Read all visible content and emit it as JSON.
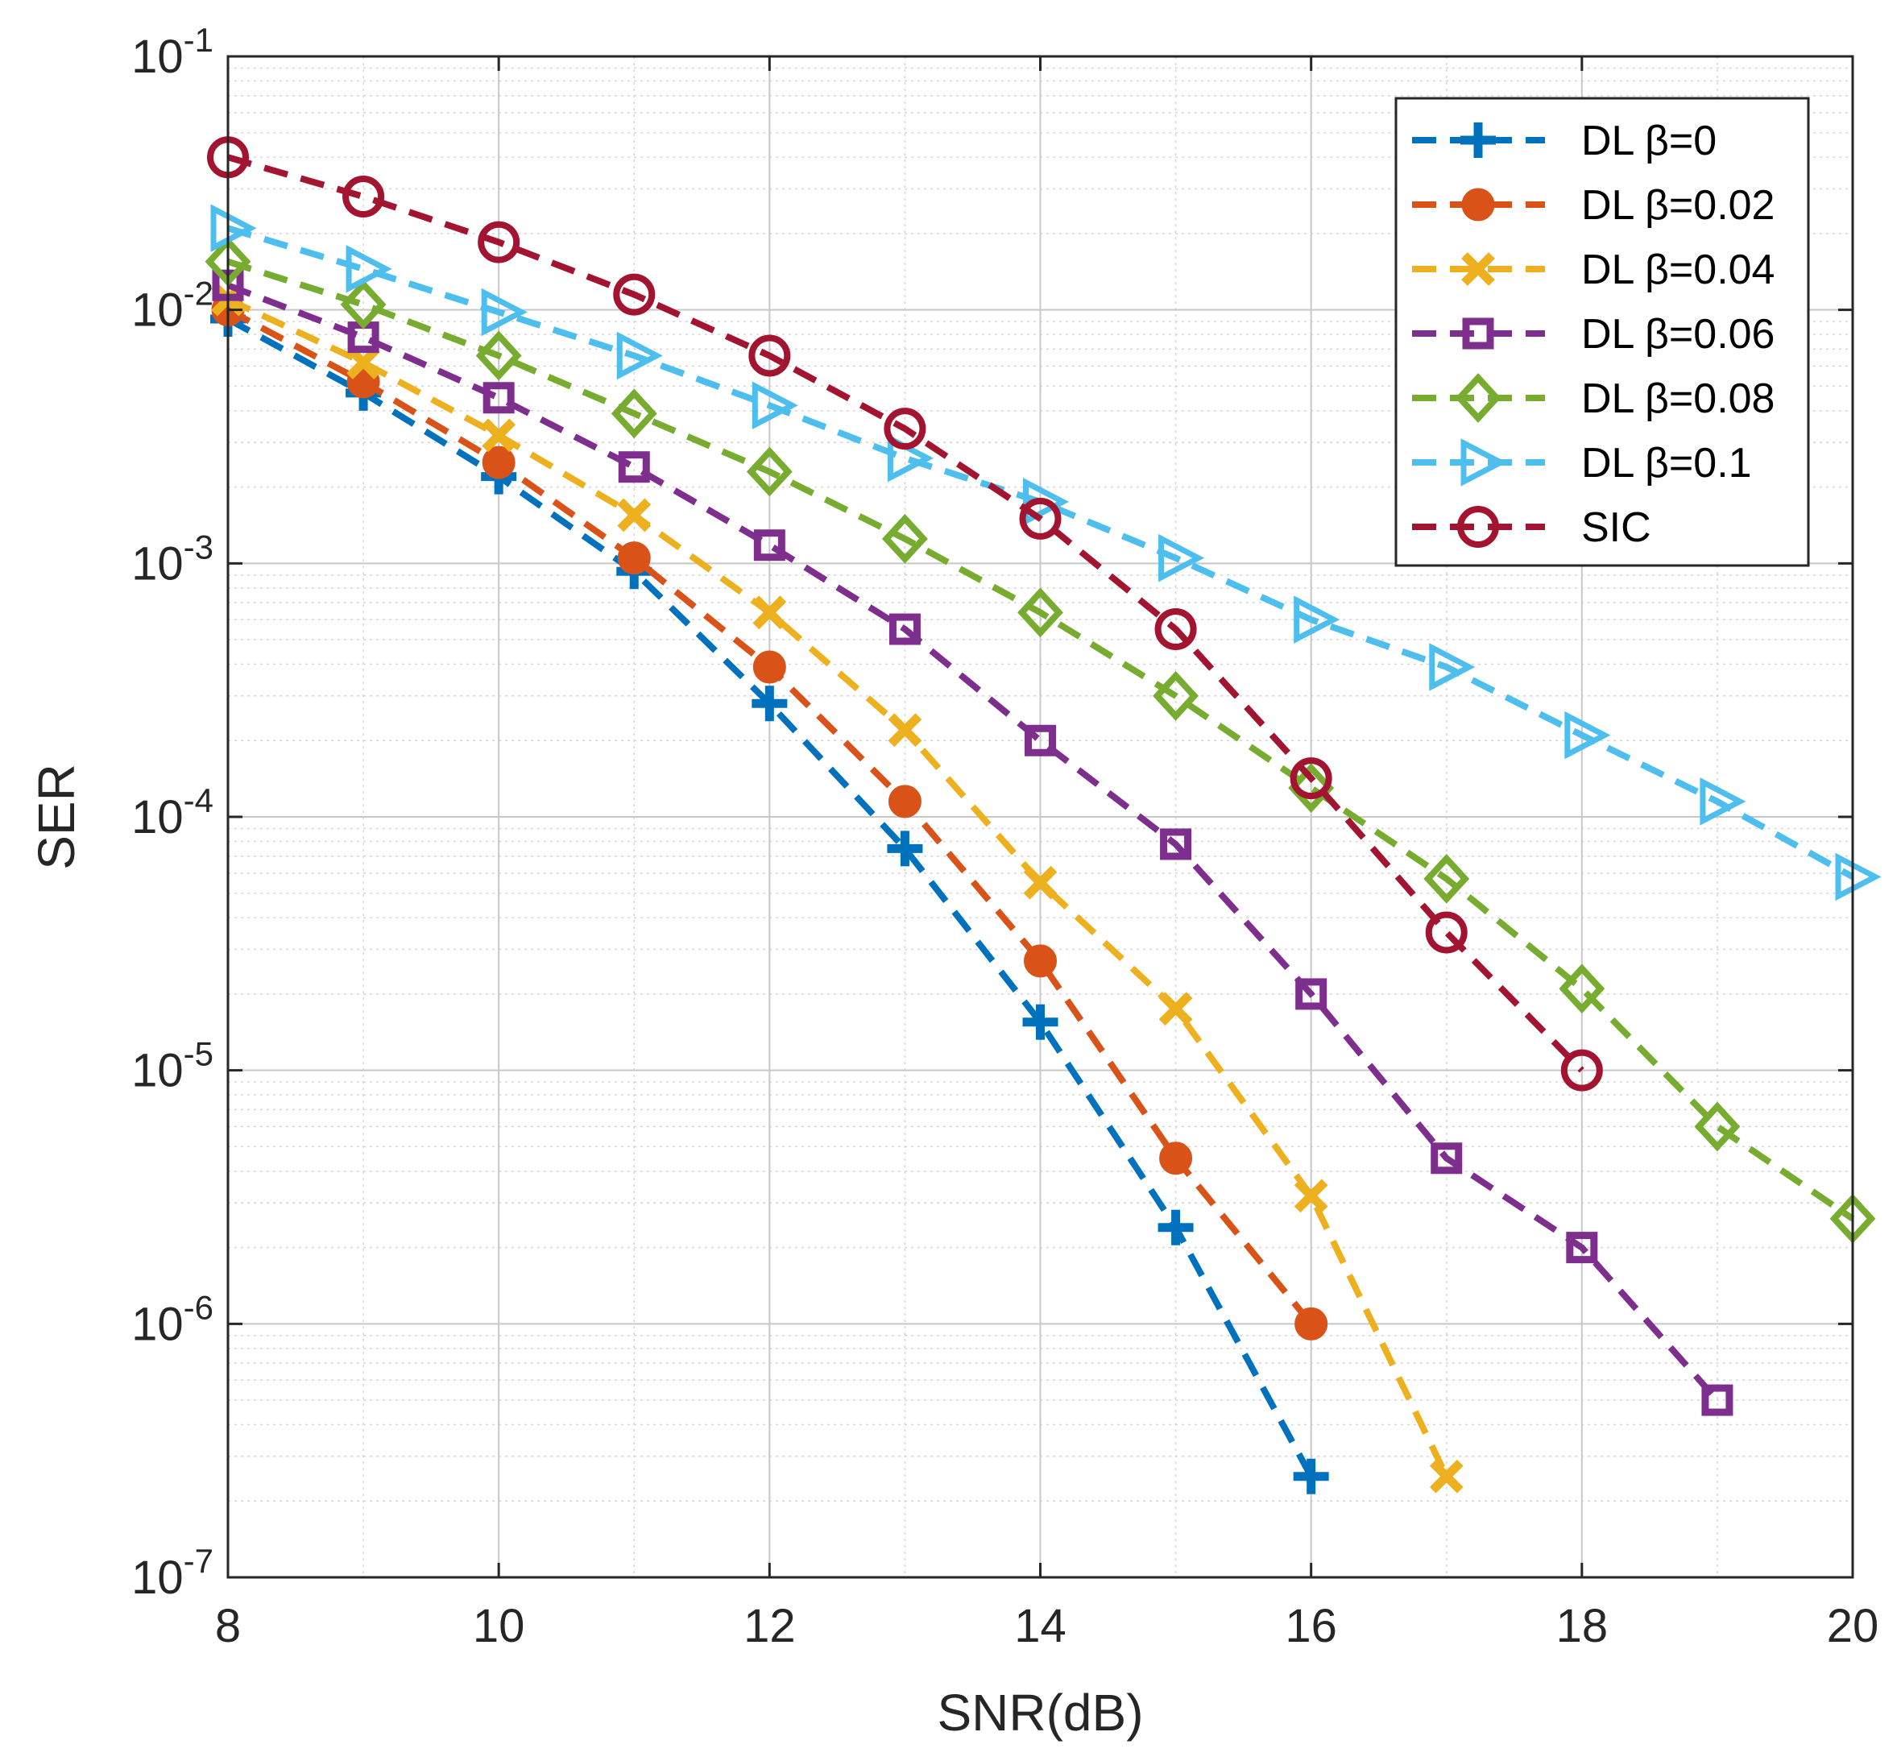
{
  "chart_data": {
    "type": "line",
    "title": "",
    "xlabel": "SNR(dB)",
    "ylabel": "SER",
    "xscale": "linear",
    "yscale": "log",
    "xlim": [
      8,
      20
    ],
    "ylim": [
      1e-07,
      0.1
    ],
    "xticks": [
      8,
      10,
      12,
      14,
      16,
      18,
      20
    ],
    "xtick_labels": [
      "8",
      "10",
      "12",
      "14",
      "16",
      "18",
      "20"
    ],
    "yticks": [
      {
        "value": 0.1,
        "base": "10",
        "exp": "-1"
      },
      {
        "value": 0.01,
        "base": "10",
        "exp": "-2"
      },
      {
        "value": 0.001,
        "base": "10",
        "exp": "-3"
      },
      {
        "value": 0.0001,
        "base": "10",
        "exp": "-4"
      },
      {
        "value": 1e-05,
        "base": "10",
        "exp": "-5"
      },
      {
        "value": 1e-06,
        "base": "10",
        "exp": "-6"
      },
      {
        "value": 1e-07,
        "base": "10",
        "exp": "-7"
      }
    ],
    "grid": true,
    "minor_grid": true,
    "legend_position": "top-right",
    "series": [
      {
        "name": "DL β=0",
        "color": "#0072BD",
        "marker": "plus",
        "linestyle": "dashed",
        "x": [
          8,
          9,
          10,
          11,
          12,
          13,
          14,
          15,
          16
        ],
        "y": [
          0.0092,
          0.0047,
          0.0022,
          0.00093,
          0.00028,
          7.5e-05,
          1.55e-05,
          2.4e-06,
          2.5e-07
        ]
      },
      {
        "name": "DL β=0.02",
        "color": "#D95319",
        "marker": "circle-filled",
        "linestyle": "dashed",
        "x": [
          8,
          9,
          10,
          11,
          12,
          13,
          14,
          15,
          16
        ],
        "y": [
          0.01,
          0.0052,
          0.0025,
          0.00105,
          0.00039,
          0.000115,
          2.7e-05,
          4.5e-06,
          1e-06
        ]
      },
      {
        "name": "DL β=0.04",
        "color": "#EDB120",
        "marker": "x",
        "linestyle": "dashed",
        "x": [
          8,
          9,
          10,
          11,
          12,
          13,
          14,
          15,
          16,
          17
        ],
        "y": [
          0.011,
          0.0062,
          0.0032,
          0.00155,
          0.00064,
          0.00022,
          5.5e-05,
          1.75e-05,
          3.2e-06,
          2.5e-07
        ]
      },
      {
        "name": "DL β=0.06",
        "color": "#7E2F8E",
        "marker": "square",
        "linestyle": "dashed",
        "x": [
          8,
          9,
          10,
          11,
          12,
          13,
          14,
          15,
          16,
          17,
          18,
          19
        ],
        "y": [
          0.0125,
          0.0078,
          0.0045,
          0.0024,
          0.00118,
          0.00055,
          0.0002,
          7.8e-05,
          2e-05,
          4.5e-06,
          2e-06,
          5e-07
        ]
      },
      {
        "name": "DL β=0.08",
        "color": "#77AC30",
        "marker": "diamond",
        "linestyle": "dashed",
        "x": [
          8,
          9,
          10,
          11,
          12,
          13,
          14,
          15,
          16,
          17,
          18,
          19,
          20
        ],
        "y": [
          0.0155,
          0.0105,
          0.0066,
          0.0039,
          0.0023,
          0.00125,
          0.00064,
          0.0003,
          0.00013,
          5.7e-05,
          2.1e-05,
          6e-06,
          2.6e-06
        ]
      },
      {
        "name": "DL β=0.1",
        "color": "#4DBEEE",
        "marker": "triangle-right",
        "linestyle": "dashed",
        "x": [
          8,
          9,
          10,
          11,
          12,
          13,
          14,
          15,
          16,
          17,
          18,
          19,
          20
        ],
        "y": [
          0.021,
          0.0145,
          0.0098,
          0.0066,
          0.0042,
          0.0026,
          0.00175,
          0.00105,
          0.0006,
          0.00039,
          0.00021,
          0.000115,
          5.8e-05
        ]
      },
      {
        "name": "SIC",
        "color": "#A2142F",
        "marker": "circle-open",
        "linestyle": "dashed",
        "x": [
          8,
          9,
          10,
          11,
          12,
          13,
          14,
          15,
          16,
          17,
          18
        ],
        "y": [
          0.04,
          0.028,
          0.0185,
          0.0115,
          0.0066,
          0.0034,
          0.0015,
          0.00055,
          0.000142,
          3.5e-05,
          1e-05
        ]
      }
    ]
  }
}
